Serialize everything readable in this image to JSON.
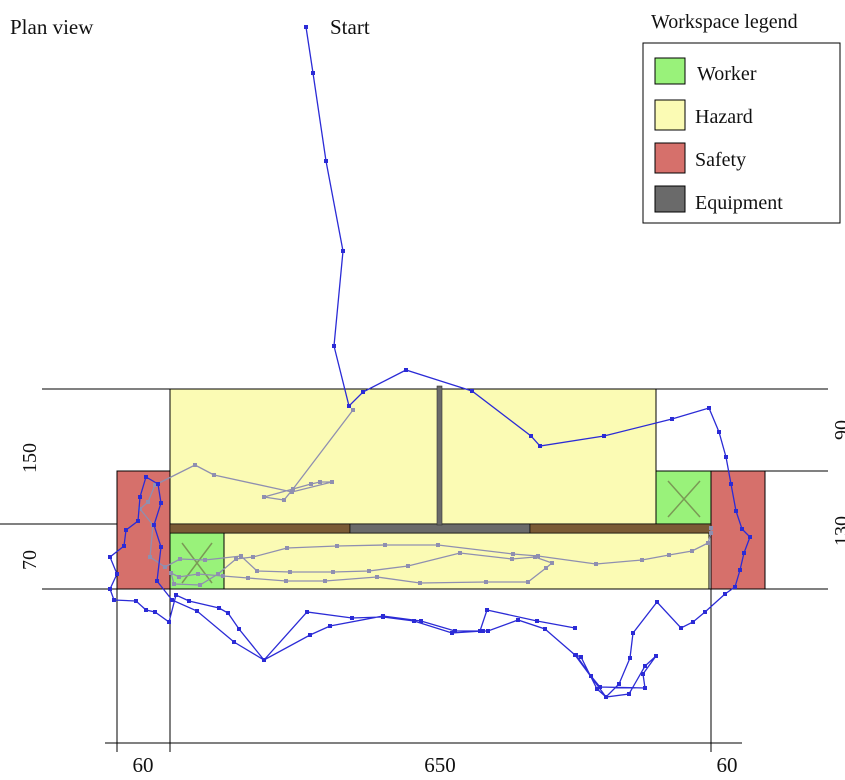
{
  "title": "Plan view",
  "start_label": "Start",
  "legend": {
    "title": "Workspace legend",
    "items": [
      {
        "key": "worker",
        "label": "Worker",
        "color": "#99f27a"
      },
      {
        "key": "hazard",
        "label": "Hazard",
        "color": "#fbfbb4"
      },
      {
        "key": "safety",
        "label": "Safety",
        "color": "#d6706b"
      },
      {
        "key": "equipment",
        "label": "Equipment",
        "color": "#6a6a6a"
      }
    ]
  },
  "dimensions": {
    "left_top": "150",
    "left_bottom": "70",
    "right_top": "90",
    "right_bottom": "130",
    "bottom_left": "60",
    "bottom_mid": "650",
    "bottom_right": "60"
  },
  "colors": {
    "path_primary": "#2b2bd6",
    "path_secondary": "#8f8fb0",
    "rail": "#7a5a35",
    "outline": "#000000"
  }
}
